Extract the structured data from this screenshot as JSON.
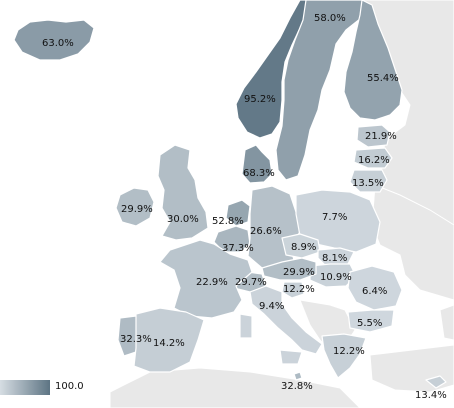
{
  "regions": [
    {
      "id": "iceland",
      "label": "63.0%",
      "value": 63.0
    },
    {
      "id": "norway",
      "label": "95.2%",
      "value": 95.2
    },
    {
      "id": "sweden",
      "label": "58.0%",
      "value": 58.0
    },
    {
      "id": "finland",
      "label": "55.4%",
      "value": 55.4
    },
    {
      "id": "estonia",
      "label": "21.9%",
      "value": 21.9
    },
    {
      "id": "latvia",
      "label": "16.2%",
      "value": 16.2
    },
    {
      "id": "lithuania",
      "label": "13.5%",
      "value": 13.5
    },
    {
      "id": "denmark",
      "label": "68.3%",
      "value": 68.3
    },
    {
      "id": "ireland",
      "label": "29.9%",
      "value": 29.9
    },
    {
      "id": "united-kingdom",
      "label": "30.0%",
      "value": 30.0
    },
    {
      "id": "netherlands",
      "label": "52.8%",
      "value": 52.8
    },
    {
      "id": "belgium",
      "label": "37.3%",
      "value": 37.3
    },
    {
      "id": "germany",
      "label": "26.6%",
      "value": 26.6
    },
    {
      "id": "poland",
      "label": "7.7%",
      "value": 7.7
    },
    {
      "id": "czechia",
      "label": "8.9%",
      "value": 8.9
    },
    {
      "id": "slovakia",
      "label": "8.1%",
      "value": 8.1
    },
    {
      "id": "hungary",
      "label": "10.9%",
      "value": 10.9
    },
    {
      "id": "austria",
      "label": "29.9%",
      "value": 29.9
    },
    {
      "id": "switzerland",
      "label": "29.7%",
      "value": 29.7
    },
    {
      "id": "slovenia",
      "label": "12.2%",
      "value": 12.2
    },
    {
      "id": "france",
      "label": "22.9%",
      "value": 22.9
    },
    {
      "id": "italy",
      "label": "9.4%",
      "value": 9.4
    },
    {
      "id": "romania",
      "label": "6.4%",
      "value": 6.4
    },
    {
      "id": "bulgaria",
      "label": "5.5%",
      "value": 5.5
    },
    {
      "id": "greece",
      "label": "12.2%",
      "value": 12.2
    },
    {
      "id": "portugal",
      "label": "32.3%",
      "value": 32.3
    },
    {
      "id": "spain",
      "label": "14.2%",
      "value": 14.2
    },
    {
      "id": "malta",
      "label": "32.8%",
      "value": 32.8
    },
    {
      "id": "cyprus",
      "label": "13.4%",
      "value": 13.4
    }
  ],
  "legend": {
    "max_label": "100.0",
    "max_value": 100.0
  },
  "colors": {
    "scale_low": "#d6dde3",
    "scale_high": "#5d7483",
    "other_land": "#e8e8e8",
    "background": "#ffffff",
    "border": "#ffffff"
  }
}
